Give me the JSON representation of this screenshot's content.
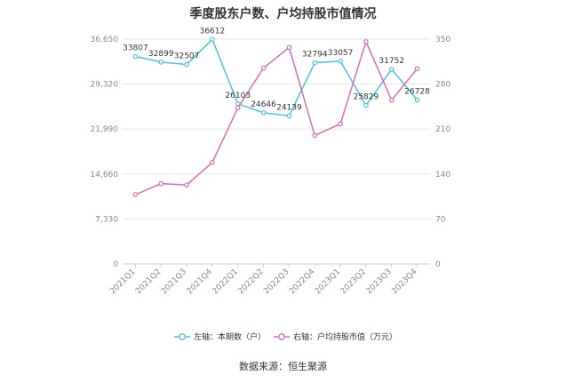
{
  "title": "季度股东户数、户均持股市值情况",
  "source": "数据来源：恒生聚源",
  "chart_data": {
    "type": "line",
    "categories": [
      "2021Q1",
      "2021Q2",
      "2021Q3",
      "2021Q4",
      "2022Q1",
      "2022Q2",
      "2022Q3",
      "2022Q4",
      "2023Q1",
      "2023Q2",
      "2023Q3",
      "2023Q4"
    ],
    "series": [
      {
        "name": "左轴：本期数（户）",
        "axis": "left",
        "color": "#4dbfe8",
        "values": [
          33807,
          32899,
          32507,
          36612,
          26103,
          24646,
          24139,
          32794,
          33057,
          25829,
          31752,
          26728
        ],
        "labels": [
          "33807",
          "32899",
          "32507",
          "36612",
          "26103",
          "24646",
          "24139",
          "32794",
          "33057",
          "25829",
          "31752",
          "26728"
        ]
      },
      {
        "name": "右轴：户均持股市值（万元）",
        "axis": "right",
        "color": "#d96bb5",
        "values": [
          108,
          125,
          123,
          158,
          243,
          305,
          337,
          200,
          218,
          346,
          255,
          304
        ]
      }
    ],
    "y_left": {
      "min": 0,
      "max": 36650,
      "ticks": [
        "0",
        "7,330",
        "14,660",
        "21,990",
        "29,320",
        "36,650"
      ]
    },
    "y_right": {
      "min": 0,
      "max": 350,
      "ticks": [
        "0",
        "70",
        "140",
        "210",
        "280",
        "350"
      ]
    },
    "grid": true,
    "legend_position": "bottom"
  }
}
